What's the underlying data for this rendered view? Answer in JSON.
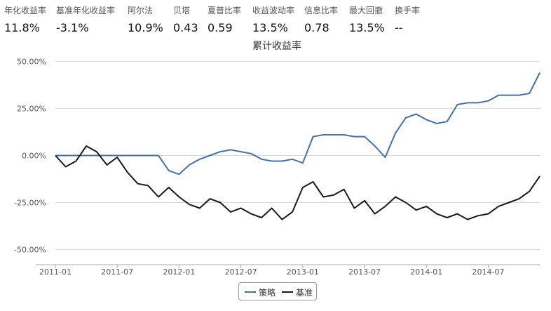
{
  "metrics": [
    {
      "label": "年化收益率",
      "value": "11.8%"
    },
    {
      "label": "基准年化收益率",
      "value": "-3.1%"
    },
    {
      "label": "阿尔法",
      "value": "10.9%"
    },
    {
      "label": "贝塔",
      "value": "0.43"
    },
    {
      "label": "夏普比率",
      "value": "0.59"
    },
    {
      "label": "收益波动率",
      "value": "13.5%"
    },
    {
      "label": "信息比率",
      "value": "0.78"
    },
    {
      "label": "最大回撤",
      "value": "13.5%"
    },
    {
      "label": "换手率",
      "value": "--"
    }
  ],
  "chart_data": {
    "type": "line",
    "title": "累计收益率",
    "xlabel": "",
    "ylabel": "",
    "ylim": [
      -58,
      52
    ],
    "yticks": [
      -50,
      -25,
      0,
      25,
      50
    ],
    "ytick_labels": [
      "-50.00%",
      "-25.00%",
      "0.00%",
      "25.00%",
      "50.00%"
    ],
    "xlim": [
      "2011-01",
      "2014-12"
    ],
    "xticks": [
      "2011-01",
      "2011-07",
      "2012-01",
      "2012-07",
      "2013-01",
      "2013-07",
      "2014-01",
      "2014-07"
    ],
    "grid": true,
    "legend_position": "bottom-center",
    "colors": {
      "策略": "#4572a7",
      "基准": "#1a1a1a"
    },
    "series": [
      {
        "name": "策略",
        "x": [
          "2011-01",
          "2011-03",
          "2011-06",
          "2011-09",
          "2011-11",
          "2011-12",
          "2012-01",
          "2012-02",
          "2012-03",
          "2012-04",
          "2012-05",
          "2012-06",
          "2012-07",
          "2012-08",
          "2012-09",
          "2012-10",
          "2012-11",
          "2012-12",
          "2013-01",
          "2013-02",
          "2013-03",
          "2013-04",
          "2013-05",
          "2013-06",
          "2013-07",
          "2013-08",
          "2013-09",
          "2013-10",
          "2013-11",
          "2013-12",
          "2014-01",
          "2014-02",
          "2014-03",
          "2014-04",
          "2014-05",
          "2014-06",
          "2014-07",
          "2014-08",
          "2014-09",
          "2014-10",
          "2014-11",
          "2014-12"
        ],
        "values": [
          0,
          0,
          0,
          0,
          0,
          -8,
          -10,
          -5,
          -2,
          0,
          2,
          3,
          2,
          1,
          -2,
          -3,
          -3,
          -2,
          -4,
          10,
          11,
          11,
          11,
          10,
          10,
          5,
          -1,
          12,
          20,
          22,
          19,
          17,
          18,
          27,
          28,
          28,
          29,
          32,
          32,
          32,
          33,
          44
        ]
      },
      {
        "name": "基准",
        "x": [
          "2011-01",
          "2011-02",
          "2011-03",
          "2011-04",
          "2011-05",
          "2011-06",
          "2011-07",
          "2011-08",
          "2011-09",
          "2011-10",
          "2011-11",
          "2011-12",
          "2012-01",
          "2012-02",
          "2012-03",
          "2012-04",
          "2012-05",
          "2012-06",
          "2012-07",
          "2012-08",
          "2012-09",
          "2012-10",
          "2012-11",
          "2012-12",
          "2013-01",
          "2013-02",
          "2013-03",
          "2013-04",
          "2013-05",
          "2013-06",
          "2013-07",
          "2013-08",
          "2013-09",
          "2013-10",
          "2013-11",
          "2013-12",
          "2014-01",
          "2014-02",
          "2014-03",
          "2014-04",
          "2014-05",
          "2014-06",
          "2014-07",
          "2014-08",
          "2014-09",
          "2014-10",
          "2014-11",
          "2014-12"
        ],
        "values": [
          0,
          -6,
          -3,
          5,
          2,
          -5,
          -1,
          -9,
          -15,
          -16,
          -22,
          -17,
          -22,
          -26,
          -28,
          -23,
          -25,
          -30,
          -28,
          -31,
          -33,
          -28,
          -34,
          -30,
          -17,
          -14,
          -22,
          -21,
          -18,
          -28,
          -24,
          -31,
          -27,
          -22,
          -25,
          -29,
          -27,
          -31,
          -33,
          -31,
          -34,
          -32,
          -31,
          -27,
          -25,
          -23,
          -19,
          -11
        ]
      }
    ]
  }
}
